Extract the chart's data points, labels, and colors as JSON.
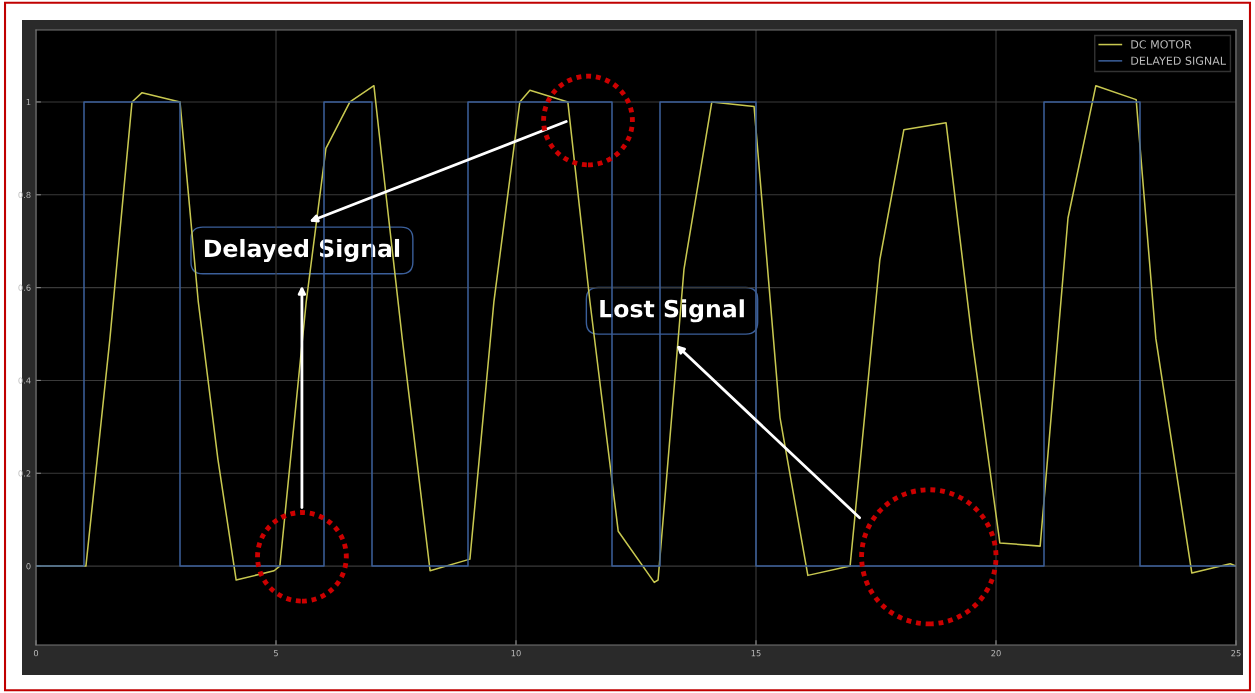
{
  "chart_data": {
    "type": "line",
    "xlim": [
      0,
      25
    ],
    "xticks": [
      0,
      5,
      10,
      15,
      20,
      25
    ],
    "ylim": [
      -0.17,
      1.155
    ],
    "yticks": [
      0,
      0.2,
      0.4,
      0.6,
      0.8,
      1
    ],
    "grid": true,
    "legend": "top right",
    "marker": "none",
    "line_style": "solid",
    "annotations": [
      "Delayed Signal",
      "Lost Signal"
    ],
    "series": [
      {
        "name": "DC MOTOR",
        "color": "#c8c850",
        "x": [
          0,
          1.0,
          1.04,
          1.54,
          2.0,
          2.21,
          3.0,
          3.38,
          3.79,
          4.17,
          4.96,
          5.08,
          5.63,
          6.04,
          6.54,
          7.04,
          7.21,
          7.63,
          8.21,
          9.04,
          9.54,
          10.08,
          10.29,
          11.08,
          11.54,
          12.13,
          12.88,
          12.96,
          13.5,
          14.08,
          14.96,
          15.5,
          16.08,
          16.96,
          17.58,
          18.08,
          18.96,
          19.5,
          20.08,
          20.92,
          21.5,
          22.08,
          22.92,
          23.33,
          24.08,
          24.88,
          25
        ],
        "values": [
          0,
          0,
          0,
          0.49,
          1.0,
          1.02,
          1.0,
          0.57,
          0.23,
          -0.03,
          -0.01,
          0,
          0.57,
          0.9,
          1.0,
          1.035,
          0.875,
          0.49,
          -0.01,
          0.015,
          0.57,
          1.0,
          1.025,
          1.0,
          0.57,
          0.075,
          -0.035,
          -0.03,
          0.64,
          1.0,
          0.99,
          0.32,
          -0.02,
          0,
          0.66,
          0.94,
          0.955,
          0.49,
          0.05,
          0.043,
          0.75,
          1.035,
          1.005,
          0.49,
          -0.015,
          0.005,
          0
        ]
      },
      {
        "name": "DELAYED SIGNAL",
        "type": "step",
        "color": "#3b5f9a",
        "x": [
          0,
          1,
          3,
          6,
          7,
          9,
          12,
          13,
          15,
          21,
          23,
          25
        ],
        "values": [
          0,
          1,
          0,
          1,
          0,
          1,
          0,
          1,
          0,
          1,
          0,
          0
        ]
      }
    ]
  }
}
